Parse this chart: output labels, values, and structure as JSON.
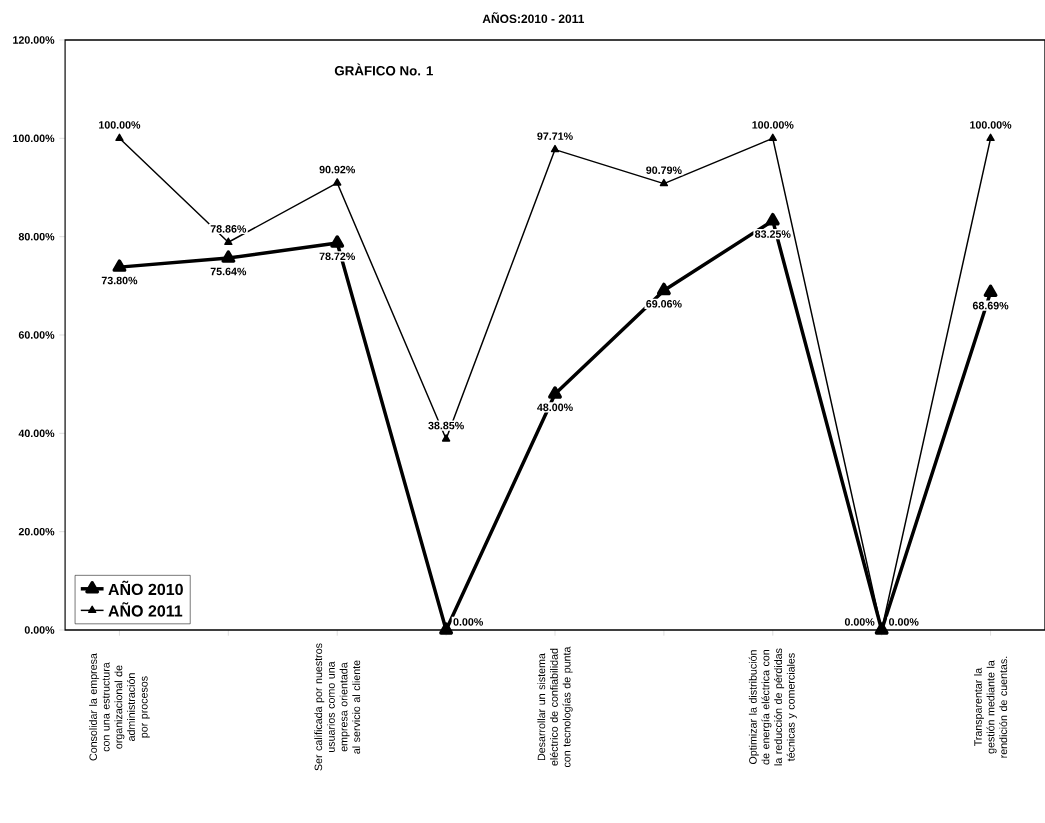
{
  "chart_data": {
    "type": "line",
    "title": "AÑOS:2010 - 2011",
    "annotations": [
      "GRÀFICO No. 1"
    ],
    "categories": [
      "Consolidar la empresa con una estructura organizacional de administración por procesos",
      null,
      "Ser calificada por nuestros usuarios como una empresa orientada al servicio al cliente",
      null,
      "Desarrollar un sistema eléctrico de confiabilidad con tecnologías de punta",
      null,
      "Optimizar la distribución de energía eléctrica con la reducción de pérdidas técnicas y comerciales",
      null,
      "Transparentar la gestión mediante la rendición de cuentas."
    ],
    "series": [
      {
        "name": "AÑO 2010",
        "color": "#000000",
        "values": [
          73.8,
          75.64,
          78.72,
          0,
          48.0,
          69.06,
          83.25,
          0,
          68.69
        ],
        "value_labels": [
          "73.80%",
          "75.64%",
          "78.72%",
          "0.00%",
          "48.00%",
          "69.06%",
          "83.25%",
          "0.00%",
          "68.69%"
        ]
      },
      {
        "name": "AÑO 2011",
        "color": "#000000",
        "values": [
          100,
          78.86,
          90.92,
          38.85,
          97.71,
          90.79,
          100,
          0,
          100
        ],
        "value_labels": [
          "100.00%",
          "78.86%",
          "90.92%",
          "38.85%",
          "97.71%",
          "90.79%",
          "100.00%",
          "0.00%",
          "100.00%"
        ]
      }
    ],
    "ylim": [
      0,
      120
    ],
    "yticks": [
      {
        "value": 0,
        "label": "0.00%"
      },
      {
        "value": 20,
        "label": "20.00%"
      },
      {
        "value": 40,
        "label": "40.00%"
      },
      {
        "value": 60,
        "label": "60.00%"
      },
      {
        "value": 80,
        "label": "80.00%"
      },
      {
        "value": 100,
        "label": "100.00%"
      },
      {
        "value": 120,
        "label": "120.00%"
      }
    ],
    "marker": "triangle",
    "line_style": "solid",
    "legend": "bottom left"
  }
}
